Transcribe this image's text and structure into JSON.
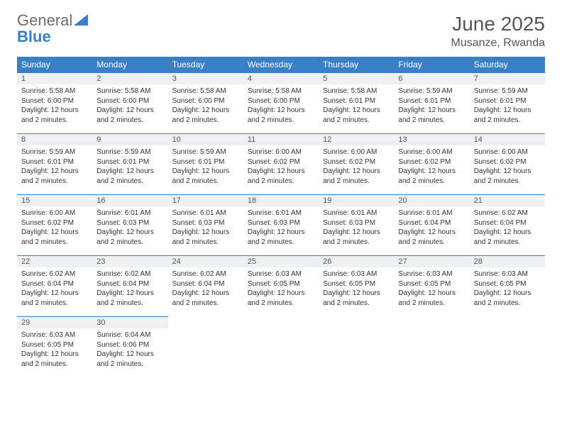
{
  "brand": {
    "part1": "General",
    "part2": "Blue"
  },
  "title": "June 2025",
  "location": "Musanze, Rwanda",
  "colors": {
    "header_bg": "#3a7fc4",
    "header_text": "#ffffff",
    "daynum_bg": "#eef0f2",
    "daynum_border": "#3a7fc4",
    "body_text": "#333333",
    "title_text": "#555555"
  },
  "weekdays": [
    "Sunday",
    "Monday",
    "Tuesday",
    "Wednesday",
    "Thursday",
    "Friday",
    "Saturday"
  ],
  "weeks": [
    [
      {
        "n": "1",
        "sr": "5:58 AM",
        "ss": "6:00 PM",
        "dl": "12 hours and 2 minutes."
      },
      {
        "n": "2",
        "sr": "5:58 AM",
        "ss": "6:00 PM",
        "dl": "12 hours and 2 minutes."
      },
      {
        "n": "3",
        "sr": "5:58 AM",
        "ss": "6:00 PM",
        "dl": "12 hours and 2 minutes."
      },
      {
        "n": "4",
        "sr": "5:58 AM",
        "ss": "6:00 PM",
        "dl": "12 hours and 2 minutes."
      },
      {
        "n": "5",
        "sr": "5:58 AM",
        "ss": "6:01 PM",
        "dl": "12 hours and 2 minutes."
      },
      {
        "n": "6",
        "sr": "5:59 AM",
        "ss": "6:01 PM",
        "dl": "12 hours and 2 minutes."
      },
      {
        "n": "7",
        "sr": "5:59 AM",
        "ss": "6:01 PM",
        "dl": "12 hours and 2 minutes."
      }
    ],
    [
      {
        "n": "8",
        "sr": "5:59 AM",
        "ss": "6:01 PM",
        "dl": "12 hours and 2 minutes."
      },
      {
        "n": "9",
        "sr": "5:59 AM",
        "ss": "6:01 PM",
        "dl": "12 hours and 2 minutes."
      },
      {
        "n": "10",
        "sr": "5:59 AM",
        "ss": "6:01 PM",
        "dl": "12 hours and 2 minutes."
      },
      {
        "n": "11",
        "sr": "6:00 AM",
        "ss": "6:02 PM",
        "dl": "12 hours and 2 minutes."
      },
      {
        "n": "12",
        "sr": "6:00 AM",
        "ss": "6:02 PM",
        "dl": "12 hours and 2 minutes."
      },
      {
        "n": "13",
        "sr": "6:00 AM",
        "ss": "6:02 PM",
        "dl": "12 hours and 2 minutes."
      },
      {
        "n": "14",
        "sr": "6:00 AM",
        "ss": "6:02 PM",
        "dl": "12 hours and 2 minutes."
      }
    ],
    [
      {
        "n": "15",
        "sr": "6:00 AM",
        "ss": "6:02 PM",
        "dl": "12 hours and 2 minutes."
      },
      {
        "n": "16",
        "sr": "6:01 AM",
        "ss": "6:03 PM",
        "dl": "12 hours and 2 minutes."
      },
      {
        "n": "17",
        "sr": "6:01 AM",
        "ss": "6:03 PM",
        "dl": "12 hours and 2 minutes."
      },
      {
        "n": "18",
        "sr": "6:01 AM",
        "ss": "6:03 PM",
        "dl": "12 hours and 2 minutes."
      },
      {
        "n": "19",
        "sr": "6:01 AM",
        "ss": "6:03 PM",
        "dl": "12 hours and 2 minutes."
      },
      {
        "n": "20",
        "sr": "6:01 AM",
        "ss": "6:04 PM",
        "dl": "12 hours and 2 minutes."
      },
      {
        "n": "21",
        "sr": "6:02 AM",
        "ss": "6:04 PM",
        "dl": "12 hours and 2 minutes."
      }
    ],
    [
      {
        "n": "22",
        "sr": "6:02 AM",
        "ss": "6:04 PM",
        "dl": "12 hours and 2 minutes."
      },
      {
        "n": "23",
        "sr": "6:02 AM",
        "ss": "6:04 PM",
        "dl": "12 hours and 2 minutes."
      },
      {
        "n": "24",
        "sr": "6:02 AM",
        "ss": "6:04 PM",
        "dl": "12 hours and 2 minutes."
      },
      {
        "n": "25",
        "sr": "6:03 AM",
        "ss": "6:05 PM",
        "dl": "12 hours and 2 minutes."
      },
      {
        "n": "26",
        "sr": "6:03 AM",
        "ss": "6:05 PM",
        "dl": "12 hours and 2 minutes."
      },
      {
        "n": "27",
        "sr": "6:03 AM",
        "ss": "6:05 PM",
        "dl": "12 hours and 2 minutes."
      },
      {
        "n": "28",
        "sr": "6:03 AM",
        "ss": "6:05 PM",
        "dl": "12 hours and 2 minutes."
      }
    ],
    [
      {
        "n": "29",
        "sr": "6:03 AM",
        "ss": "6:05 PM",
        "dl": "12 hours and 2 minutes."
      },
      {
        "n": "30",
        "sr": "6:04 AM",
        "ss": "6:06 PM",
        "dl": "12 hours and 2 minutes."
      },
      null,
      null,
      null,
      null,
      null
    ]
  ],
  "labels": {
    "sunrise": "Sunrise: ",
    "sunset": "Sunset: ",
    "daylight": "Daylight: "
  }
}
